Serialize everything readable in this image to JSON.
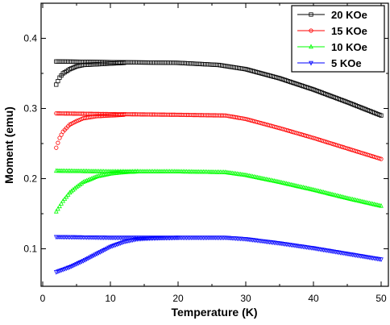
{
  "chart_data": {
    "type": "scatter",
    "xlabel": "Temperature (K)",
    "ylabel": "Moment (emu)",
    "xlim": [
      0,
      50
    ],
    "ylim": [
      0.05,
      0.45
    ],
    "xticks": [
      0,
      10,
      20,
      30,
      40,
      50
    ],
    "yticks": [
      0.1,
      0.2,
      0.3,
      0.4
    ],
    "grid": false,
    "legend_position": "top-right",
    "series": [
      {
        "name": "20 KOe",
        "color": "#000000",
        "marker": "square",
        "fc": {
          "x": [
            2,
            10,
            20,
            26,
            30,
            35,
            40,
            45,
            50
          ],
          "y": [
            0.367,
            0.366,
            0.365,
            0.362,
            0.356,
            0.343,
            0.327,
            0.309,
            0.29
          ]
        },
        "zfc": {
          "x": [
            2,
            2.5,
            3,
            4,
            5,
            6,
            8,
            10,
            12
          ],
          "y": [
            0.334,
            0.344,
            0.35,
            0.356,
            0.36,
            0.362,
            0.363,
            0.364,
            0.365
          ]
        }
      },
      {
        "name": "15 KOe",
        "color": "#ff0000",
        "marker": "circle",
        "fc": {
          "x": [
            2,
            10,
            20,
            27,
            30,
            35,
            40,
            45,
            50
          ],
          "y": [
            0.293,
            0.292,
            0.291,
            0.29,
            0.285,
            0.272,
            0.258,
            0.243,
            0.228
          ]
        },
        "zfc": {
          "x": [
            2,
            2.5,
            3,
            4,
            5,
            6,
            8,
            10,
            12
          ],
          "y": [
            0.244,
            0.258,
            0.267,
            0.277,
            0.282,
            0.286,
            0.289,
            0.29,
            0.291
          ]
        }
      },
      {
        "name": "10 KOe",
        "color": "#00ff00",
        "marker": "triangle-up",
        "fc": {
          "x": [
            2,
            10,
            20,
            27,
            30,
            35,
            40,
            45,
            50
          ],
          "y": [
            0.211,
            0.21,
            0.21,
            0.209,
            0.205,
            0.195,
            0.184,
            0.172,
            0.161
          ]
        },
        "zfc": {
          "x": [
            2,
            3,
            4,
            5,
            6,
            8,
            10,
            12,
            14
          ],
          "y": [
            0.153,
            0.168,
            0.18,
            0.188,
            0.195,
            0.203,
            0.207,
            0.209,
            0.21
          ]
        }
      },
      {
        "name": "5 KOe",
        "color": "#0000ff",
        "marker": "triangle-down",
        "fc": {
          "x": [
            2,
            10,
            20,
            27,
            30,
            35,
            40,
            45,
            50
          ],
          "y": [
            0.117,
            0.116,
            0.116,
            0.116,
            0.114,
            0.108,
            0.101,
            0.093,
            0.085
          ]
        },
        "zfc": {
          "x": [
            2,
            4,
            6,
            8,
            10,
            12,
            14,
            16,
            20
          ],
          "y": [
            0.067,
            0.074,
            0.083,
            0.093,
            0.103,
            0.11,
            0.114,
            0.115,
            0.116
          ]
        }
      }
    ]
  }
}
